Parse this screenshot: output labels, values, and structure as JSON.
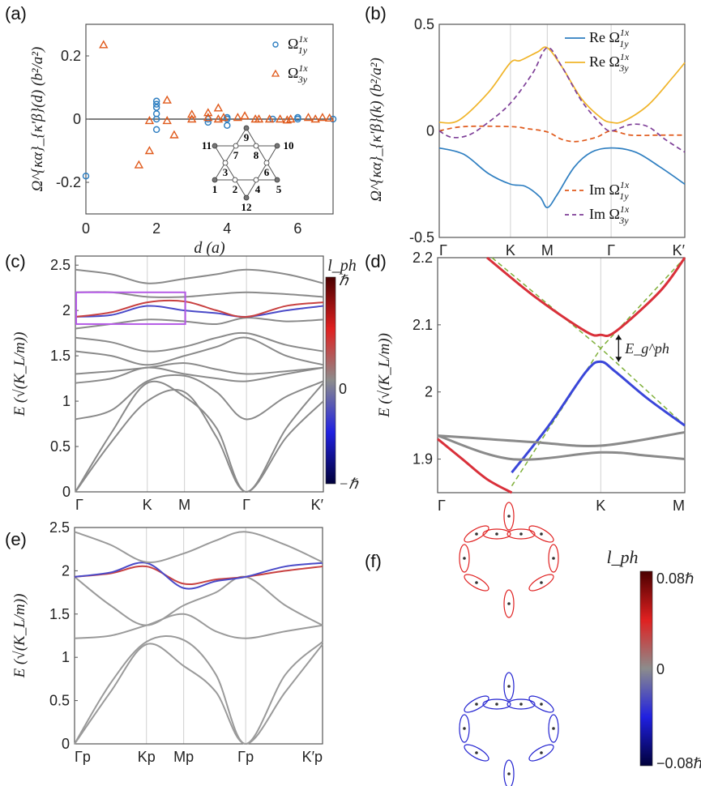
{
  "panels": {
    "a": "(a)",
    "b": "(b)",
    "c": "(c)",
    "d": "(d)",
    "e": "(e)",
    "f": "(f)"
  },
  "colors": {
    "blue": "#2f7fc1",
    "orange": "#e05a1c",
    "yellow": "#f0b429",
    "purple": "#7e3f98",
    "band": "#8a8a8a",
    "box": "#b45be6",
    "green": "#7fb03a"
  },
  "chart_data": [
    {
      "id": "a",
      "type": "scatter",
      "xlabel": "d (a)",
      "ylabel": "Ω^{κα}_{κ'β}(d) (b²/a²)",
      "xlim": [
        0,
        7
      ],
      "ylim": [
        -0.3,
        0.3
      ],
      "xticks": [
        0,
        2,
        4,
        6
      ],
      "yticks": [
        -0.2,
        0,
        0.2
      ],
      "ytick_labels": [
        "-0.2",
        "0",
        "0.2"
      ],
      "legend": "top-right",
      "series": [
        {
          "name": "Ω^{1x}_{1y}",
          "label_main": "Ω",
          "sup": "1x",
          "sub": "1y",
          "marker": "circle",
          "color": "#2f7fc1",
          "points": [
            [
              0,
              -0.18
            ],
            [
              2,
              0.057
            ],
            [
              2,
              0.047
            ],
            [
              2,
              0.037
            ],
            [
              2,
              0.017
            ],
            [
              2,
              0
            ],
            [
              2,
              -0.033
            ],
            [
              3.46,
              0
            ],
            [
              3.46,
              -0.01
            ],
            [
              4,
              0.005
            ],
            [
              4,
              0
            ],
            [
              4,
              -0.02
            ],
            [
              5.29,
              0
            ],
            [
              6,
              0
            ],
            [
              6,
              0.005
            ],
            [
              7,
              0
            ]
          ]
        },
        {
          "name": "Ω^{1x}_{3y}",
          "label_main": "Ω",
          "sup": "1x",
          "sub": "3y",
          "marker": "triangle",
          "color": "#e05a1c",
          "points": [
            [
              0.5,
              0.235
            ],
            [
              1.5,
              -0.145
            ],
            [
              1.8,
              -0.1
            ],
            [
              1.8,
              -0.005
            ],
            [
              2.3,
              0.06
            ],
            [
              2.3,
              -0.005
            ],
            [
              2.5,
              -0.05
            ],
            [
              3,
              0.015
            ],
            [
              3,
              0
            ],
            [
              3.46,
              0.02
            ],
            [
              3.46,
              0.005
            ],
            [
              3.75,
              0.035
            ],
            [
              3.75,
              0
            ],
            [
              3.9,
              0.005
            ],
            [
              4.3,
              0.005
            ],
            [
              4.5,
              0.01
            ],
            [
              4.8,
              0
            ],
            [
              4.9,
              0
            ],
            [
              5.2,
              0
            ],
            [
              5.5,
              0
            ],
            [
              5.7,
              -0.003
            ],
            [
              5.8,
              0
            ],
            [
              6.3,
              0.005
            ],
            [
              6.5,
              0
            ],
            [
              6.7,
              0.005
            ],
            [
              6.9,
              0.003
            ]
          ]
        }
      ],
      "inset_sites": [
        "1",
        "2",
        "3",
        "4",
        "5",
        "6",
        "7",
        "8",
        "9",
        "10",
        "11",
        "12"
      ]
    },
    {
      "id": "b",
      "type": "line",
      "ylabel": "Ω^{κα}_{κ'β}(k) (b²/a²)",
      "ylim": [
        -0.5,
        0.5
      ],
      "yticks": [
        -0.5,
        0,
        0.5
      ],
      "ytick_labels": [
        "-0.5",
        "0",
        "0.5"
      ],
      "xticks": [
        0,
        0.29,
        0.44,
        0.7,
        1
      ],
      "xtick_labels": [
        "Γ",
        "K",
        "M",
        "Γ",
        "K′"
      ],
      "series": [
        {
          "name": "Re Ω^{1x}_{1y}",
          "prefix": "Re",
          "sub": "1y",
          "color": "#2f7fc1",
          "dash": false,
          "x": [
            0,
            0.1,
            0.2,
            0.29,
            0.35,
            0.41,
            0.44,
            0.48,
            0.55,
            0.62,
            0.7,
            0.8,
            0.9,
            1
          ],
          "y": [
            -0.08,
            -0.11,
            -0.2,
            -0.25,
            -0.26,
            -0.31,
            -0.36,
            -0.3,
            -0.17,
            -0.1,
            -0.08,
            -0.1,
            -0.17,
            -0.25
          ]
        },
        {
          "name": "Re Ω^{1x}_{3y}",
          "prefix": "Re",
          "sub": "3y",
          "color": "#f0b429",
          "dash": false,
          "x": [
            0,
            0.08,
            0.2,
            0.29,
            0.33,
            0.4,
            0.44,
            0.5,
            0.58,
            0.66,
            0.7,
            0.75,
            0.85,
            0.95,
            1
          ],
          "y": [
            0.04,
            0.05,
            0.18,
            0.32,
            0.33,
            0.37,
            0.39,
            0.3,
            0.15,
            0.06,
            0.04,
            0.045,
            0.12,
            0.25,
            0.32
          ]
        },
        {
          "name": "Im Ω^{1x}_{1y}",
          "prefix": "Im",
          "sub": "1y",
          "color": "#e05a1c",
          "dash": true,
          "x": [
            0,
            0.1,
            0.29,
            0.36,
            0.44,
            0.5,
            0.56,
            0.64,
            0.7,
            0.78,
            0.9,
            1
          ],
          "y": [
            0,
            0.02,
            0.02,
            0.01,
            -0.005,
            -0.04,
            -0.05,
            -0.03,
            0,
            -0.02,
            -0.02,
            -0.02
          ]
        },
        {
          "name": "Im Ω^{1x}_{3y}",
          "prefix": "Im",
          "sub": "3y",
          "color": "#7e3f98",
          "dash": true,
          "x": [
            0,
            0.05,
            0.12,
            0.2,
            0.29,
            0.38,
            0.44,
            0.5,
            0.58,
            0.66,
            0.7,
            0.78,
            0.85,
            0.92,
            1
          ],
          "y": [
            0,
            -0.03,
            -0.02,
            0.04,
            0.13,
            0.27,
            0.39,
            0.3,
            0.14,
            0.03,
            0,
            0.03,
            0.02,
            -0.04,
            -0.1
          ]
        }
      ]
    },
    {
      "id": "c",
      "type": "line",
      "ylabel": "E (√(K_L/m))",
      "ylim": [
        0,
        2.6
      ],
      "yticks": [
        0,
        0.5,
        1,
        1.5,
        2,
        2.5
      ],
      "ytick_labels": [
        "0",
        "0.5",
        "1",
        "1.5",
        "2",
        "2.5"
      ],
      "xticks": [
        0,
        0.29,
        0.44,
        0.69,
        1
      ],
      "xtick_labels": [
        "Γ",
        "K",
        "M",
        "Γ",
        "K′"
      ],
      "x": [
        0,
        0.145,
        0.29,
        0.44,
        0.57,
        0.69,
        0.85,
        1
      ],
      "bands": [
        [
          0,
          0.55,
          1.0,
          1.1,
          0.6,
          0,
          0.6,
          1.0
        ],
        [
          0,
          0.65,
          1.2,
          1.05,
          0.7,
          0,
          0.7,
          1.2
        ],
        [
          0.8,
          0.9,
          1.22,
          1.28,
          1.1,
          0.8,
          1.05,
          1.22
        ],
        [
          1.2,
          1.25,
          1.37,
          1.3,
          1.25,
          1.22,
          1.3,
          1.37
        ],
        [
          1.3,
          1.33,
          1.37,
          1.42,
          1.35,
          1.3,
          1.33,
          1.37
        ],
        [
          1.55,
          1.5,
          1.4,
          1.5,
          1.6,
          1.7,
          1.5,
          1.4
        ],
        [
          1.7,
          1.65,
          1.55,
          1.6,
          1.7,
          1.75,
          1.62,
          1.55
        ],
        [
          1.8,
          1.85,
          1.9,
          1.88,
          1.85,
          1.92,
          1.88,
          1.9
        ],
        [
          1.93,
          1.95,
          2.05,
          2.0,
          1.97,
          1.93,
          2.0,
          2.05
        ],
        [
          1.93,
          1.98,
          2.09,
          2.1,
          2.0,
          1.93,
          2.05,
          2.09
        ],
        [
          2.2,
          2.2,
          2.15,
          2.15,
          2.18,
          2.2,
          2.18,
          2.15
        ],
        [
          2.45,
          2.4,
          2.3,
          2.35,
          2.4,
          2.45,
          2.4,
          2.3
        ]
      ],
      "highlight_box": {
        "x": [
          0,
          0.44
        ],
        "y": [
          1.85,
          2.2
        ]
      },
      "colorbar": {
        "title": "l_ph",
        "top": "ℏ",
        "mid": "0",
        "bottom": "−ℏ"
      }
    },
    {
      "id": "d",
      "type": "line",
      "ylabel": "E (√(K_L/m))",
      "ylim": [
        1.85,
        2.2
      ],
      "yticks": [
        1.9,
        2,
        2.1,
        2.2
      ],
      "ytick_labels": [
        "1.9",
        "2",
        "2.1",
        "2.2"
      ],
      "xticks": [
        0,
        0.66,
        1
      ],
      "xtick_labels": [
        "Γ",
        "K",
        "M"
      ],
      "annotation": "E_g^ph",
      "bands": [
        {
          "x": [
            0.2,
            0.4,
            0.6,
            0.66,
            0.72,
            0.9,
            1
          ],
          "y": [
            2.2,
            2.14,
            2.09,
            2.085,
            2.09,
            2.15,
            2.2
          ],
          "color": "#d9303a"
        },
        {
          "x": [
            0.3,
            0.45,
            0.6,
            0.66,
            0.72,
            0.85,
            1
          ],
          "y": [
            1.88,
            1.95,
            2.03,
            2.045,
            2.03,
            1.99,
            1.95
          ],
          "color": "#3a46d9"
        },
        {
          "x": [
            0,
            0.2,
            0.4,
            0.66,
            1
          ],
          "y": [
            1.935,
            1.93,
            1.925,
            1.92,
            1.94
          ],
          "color": "#8a8a8a"
        },
        {
          "x": [
            0,
            0.3,
            0.66,
            0.85,
            1
          ],
          "y": [
            1.935,
            1.9,
            1.91,
            1.905,
            1.9
          ],
          "color": "#8a8a8a"
        },
        {
          "x": [
            0,
            0.1,
            0.2,
            0.3
          ],
          "y": [
            1.93,
            1.9,
            1.87,
            1.85
          ],
          "color": "#d9303a"
        }
      ]
    },
    {
      "id": "e",
      "type": "line",
      "ylabel": "E (√(K_L/m))",
      "ylim": [
        0,
        2.5
      ],
      "yticks": [
        0,
        0.5,
        1,
        1.5,
        2,
        2.5
      ],
      "ytick_labels": [
        "0",
        "0.5",
        "1",
        "1.5",
        "2",
        "2.5"
      ],
      "xticks": [
        0,
        0.29,
        0.44,
        0.69,
        1
      ],
      "xtick_labels": [
        "Γp",
        "Kp",
        "Mp",
        "Γp",
        "K′p"
      ],
      "x": [
        0,
        0.145,
        0.29,
        0.44,
        0.57,
        0.69,
        0.85,
        1
      ],
      "bands": [
        [
          0,
          0.6,
          1.15,
          0.9,
          0.6,
          0,
          0.6,
          1.15
        ],
        [
          0,
          0.7,
          1.18,
          1.2,
          0.8,
          0,
          0.8,
          1.18
        ],
        [
          1.22,
          1.25,
          1.37,
          1.5,
          1.3,
          1.22,
          1.3,
          1.37
        ],
        [
          1.93,
          1.6,
          1.37,
          1.6,
          1.75,
          1.93,
          1.6,
          1.37
        ],
        [
          1.93,
          1.97,
          2.05,
          1.85,
          1.9,
          1.93,
          2.0,
          2.05
        ],
        [
          1.93,
          1.98,
          2.09,
          1.8,
          1.88,
          1.93,
          2.05,
          2.09
        ],
        [
          2.45,
          2.3,
          2.1,
          2.2,
          2.35,
          2.45,
          2.3,
          2.1
        ]
      ]
    },
    {
      "id": "f",
      "type": "other",
      "colorbar": {
        "title": "l_ph",
        "top": "0.08ℏ",
        "mid": "0",
        "bottom": "−0.08ℏ"
      }
    }
  ]
}
